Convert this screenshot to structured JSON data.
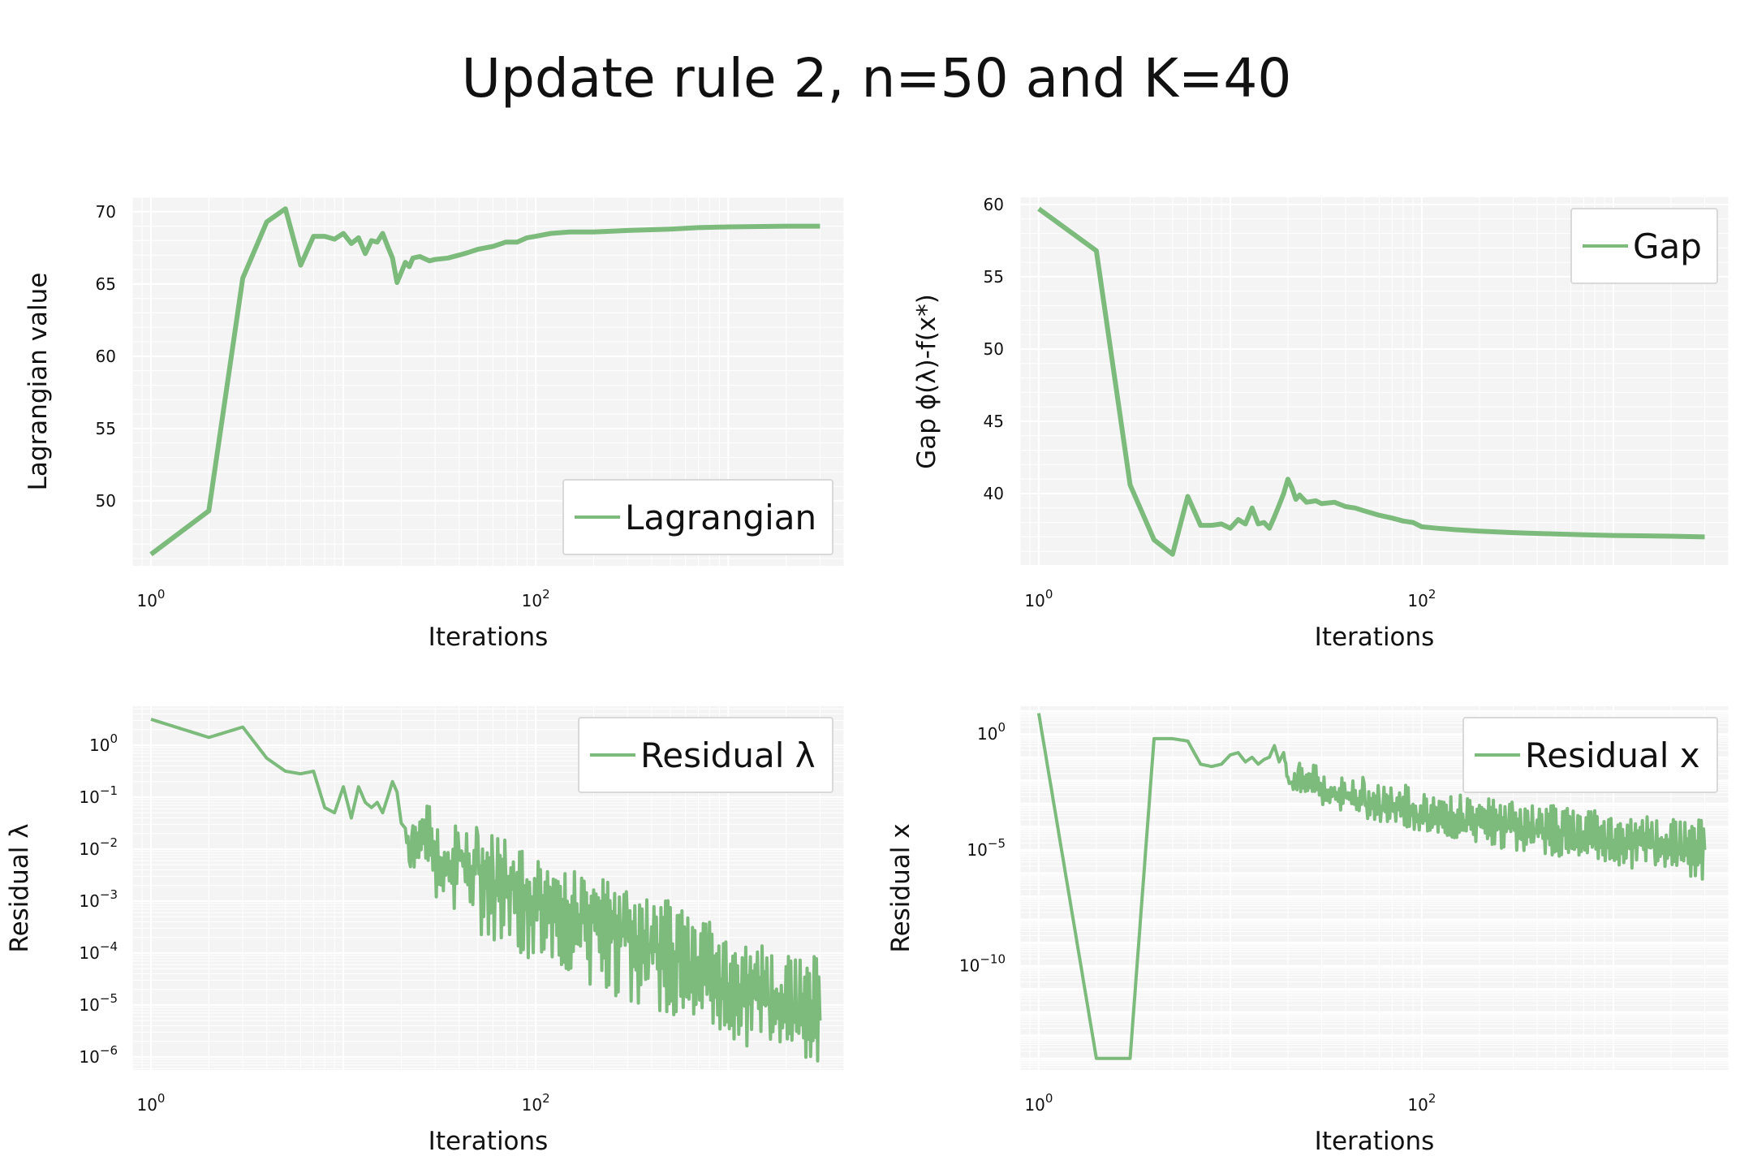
{
  "figure": {
    "title": "Update rule 2, n=50 and K=40"
  },
  "style": {
    "line_color": "#7dbb7d",
    "plot_bg": "#f4f4f4",
    "grid_color": "#ffffff",
    "legend_bg": "#ffffff",
    "legend_border": "#d9d9d9"
  },
  "chart_data": [
    {
      "type": "line",
      "title": "",
      "xlabel": "Iterations",
      "ylabel": "Lagrangian value",
      "xscale": "log",
      "yscale": "linear",
      "xlim": [
        0.8,
        4000
      ],
      "ylim": [
        45.5,
        71
      ],
      "xticks": [
        {
          "v": 1,
          "base": "10",
          "exp": "0"
        },
        {
          "v": 100,
          "base": "10",
          "exp": "2"
        }
      ],
      "yticks": [
        {
          "v": 50,
          "label": "50"
        },
        {
          "v": 55,
          "label": "55"
        },
        {
          "v": 60,
          "label": "60"
        },
        {
          "v": 65,
          "label": "65"
        },
        {
          "v": 70,
          "label": "70"
        }
      ],
      "grid": true,
      "legend": {
        "position": "lower-right",
        "entries": [
          "Lagrangian"
        ]
      },
      "series": [
        {
          "name": "Lagrangian",
          "x": [
            1,
            2,
            3,
            4,
            5,
            6,
            7,
            8,
            9,
            10,
            11,
            12,
            13,
            14,
            15,
            16,
            17,
            18,
            19,
            20,
            21,
            22,
            23,
            25,
            28,
            30,
            35,
            40,
            45,
            50,
            60,
            70,
            80,
            90,
            100,
            120,
            150,
            200,
            300,
            500,
            700,
            1000,
            2000,
            3000
          ],
          "y": [
            46.3,
            49.3,
            65.4,
            69.3,
            70.2,
            66.3,
            68.3,
            68.3,
            68.1,
            68.5,
            67.8,
            68.2,
            67.1,
            68.0,
            67.9,
            68.5,
            67.6,
            66.8,
            65.1,
            65.8,
            66.5,
            66.2,
            66.8,
            66.9,
            66.6,
            66.7,
            66.8,
            67.0,
            67.2,
            67.4,
            67.6,
            67.9,
            67.9,
            68.2,
            68.3,
            68.5,
            68.6,
            68.6,
            68.7,
            68.8,
            68.9,
            68.95,
            69.0,
            69.0
          ]
        }
      ]
    },
    {
      "type": "line",
      "title": "",
      "xlabel": "Iterations",
      "ylabel": "Gap ϕ(λ)-f(x*)",
      "xscale": "log",
      "yscale": "linear",
      "xlim": [
        0.8,
        4000
      ],
      "ylim": [
        35,
        60.5
      ],
      "xticks": [
        {
          "v": 1,
          "base": "10",
          "exp": "0"
        },
        {
          "v": 100,
          "base": "10",
          "exp": "2"
        }
      ],
      "yticks": [
        {
          "v": 40,
          "label": "40"
        },
        {
          "v": 45,
          "label": "45"
        },
        {
          "v": 50,
          "label": "50"
        },
        {
          "v": 55,
          "label": "55"
        },
        {
          "v": 60,
          "label": "60"
        }
      ],
      "grid": true,
      "legend": {
        "position": "upper-right",
        "entries": [
          "Gap"
        ]
      },
      "series": [
        {
          "name": "Gap",
          "x": [
            1,
            2,
            3,
            4,
            5,
            6,
            7,
            8,
            9,
            10,
            11,
            12,
            13,
            14,
            15,
            16,
            17,
            18,
            19,
            20,
            21,
            22,
            23,
            25,
            28,
            30,
            35,
            40,
            45,
            50,
            60,
            70,
            80,
            90,
            100,
            120,
            150,
            200,
            300,
            500,
            700,
            1000,
            2000,
            3000
          ],
          "y": [
            59.7,
            56.8,
            40.6,
            36.8,
            35.8,
            39.8,
            37.8,
            37.8,
            37.9,
            37.6,
            38.2,
            37.9,
            39.0,
            37.9,
            38.0,
            37.6,
            38.4,
            39.2,
            40.0,
            41.0,
            40.4,
            39.6,
            39.9,
            39.4,
            39.5,
            39.3,
            39.4,
            39.1,
            39.0,
            38.8,
            38.5,
            38.3,
            38.1,
            38.0,
            37.7,
            37.6,
            37.5,
            37.4,
            37.3,
            37.2,
            37.15,
            37.1,
            37.05,
            37.0
          ]
        }
      ]
    },
    {
      "type": "line",
      "title": "",
      "xlabel": "Iterations",
      "ylabel": "Residual λ",
      "xscale": "log",
      "yscale": "log",
      "xlim": [
        0.8,
        4000
      ],
      "ylim_log10": [
        -6.25,
        0.75
      ],
      "xticks": [
        {
          "v": 1,
          "base": "10",
          "exp": "0"
        },
        {
          "v": 100,
          "base": "10",
          "exp": "2"
        }
      ],
      "yticks": [
        {
          "e": 0,
          "base": "10",
          "exp": "0"
        },
        {
          "e": -1,
          "base": "10",
          "exp": "−1"
        },
        {
          "e": -2,
          "base": "10",
          "exp": "−2"
        },
        {
          "e": -3,
          "base": "10",
          "exp": "−3"
        },
        {
          "e": -4,
          "base": "10",
          "exp": "−4"
        },
        {
          "e": -5,
          "base": "10",
          "exp": "−5"
        },
        {
          "e": -6,
          "base": "10",
          "exp": "−6"
        }
      ],
      "grid": true,
      "legend": {
        "position": "upper-right",
        "entries": [
          "Residual λ"
        ]
      },
      "series": [
        {
          "name": "Residual λ",
          "x": [
            1,
            2,
            3,
            4,
            5,
            6,
            7,
            8,
            9,
            10,
            11,
            12,
            13,
            14,
            15,
            16,
            17,
            18,
            19,
            20,
            21,
            22,
            23,
            25,
            28,
            30,
            35,
            40,
            45,
            50,
            60,
            70,
            80,
            90,
            100,
            120,
            150,
            200,
            250,
            300,
            400,
            500,
            600,
            700,
            800,
            1000,
            1200,
            1500,
            2000,
            2500,
            3000
          ],
          "y_log10": [
            0.5,
            0.15,
            0.35,
            -0.25,
            -0.5,
            -0.55,
            -0.5,
            -1.2,
            -1.3,
            -0.8,
            -1.4,
            -0.8,
            -1.1,
            -1.2,
            -1.1,
            -1.3,
            -1.0,
            -0.7,
            -0.9,
            -1.5,
            -1.6,
            -2.3,
            -2.0,
            -1.9,
            -1.6,
            -2.2,
            -2.4,
            -2.1,
            -2.5,
            -2.3,
            -2.6,
            -2.7,
            -2.8,
            -3.0,
            -2.9,
            -3.1,
            -3.3,
            -3.4,
            -3.6,
            -3.7,
            -3.9,
            -4.1,
            -4.2,
            -4.3,
            -4.5,
            -4.6,
            -4.8,
            -4.9,
            -5.1,
            -5.2,
            -5.3
          ],
          "upper_envelope_log10": [
            0.5,
            0.15,
            0.35,
            -0.25,
            -0.5,
            -0.55,
            -0.5,
            -1.2,
            -1.3,
            -0.8,
            -1.4,
            -0.8,
            -1.1,
            -1.2,
            -1.1,
            -1.3,
            -1.0,
            -0.7,
            -0.9,
            -1.5,
            -1.6,
            -1.6,
            -1.5,
            -1.3,
            -1.0,
            -1.5,
            -1.6,
            -1.2,
            -1.7,
            -1.4,
            -1.6,
            -1.8,
            -2.0,
            -1.9,
            -2.0,
            -2.3,
            -2.4,
            -2.5,
            -2.6,
            -2.8,
            -2.9,
            -3.0,
            -3.2,
            -3.3,
            -3.4,
            -3.6,
            -3.7,
            -3.8,
            -4.0,
            -4.0,
            -4.1
          ],
          "lower_envelope_log10": [
            0.5,
            0.15,
            0.35,
            -0.25,
            -0.5,
            -0.55,
            -0.5,
            -1.2,
            -1.3,
            -0.8,
            -1.4,
            -0.8,
            -1.1,
            -1.2,
            -1.1,
            -1.3,
            -1.0,
            -0.7,
            -0.9,
            -1.5,
            -1.6,
            -2.5,
            -2.4,
            -2.6,
            -2.8,
            -3.0,
            -3.2,
            -3.3,
            -3.4,
            -3.6,
            -3.8,
            -3.9,
            -4.0,
            -4.1,
            -4.2,
            -4.4,
            -4.5,
            -4.7,
            -4.8,
            -4.9,
            -5.1,
            -5.2,
            -5.4,
            -5.5,
            -5.6,
            -5.7,
            -5.8,
            -5.9,
            -6.0,
            -6.05,
            -6.1
          ]
        }
      ]
    },
    {
      "type": "line",
      "title": "",
      "xlabel": "Iterations",
      "ylabel": "Residual x",
      "xscale": "log",
      "yscale": "log",
      "xlim": [
        0.8,
        4000
      ],
      "ylim_log10": [
        -14.5,
        1.2
      ],
      "xticks": [
        {
          "v": 1,
          "base": "10",
          "exp": "0"
        },
        {
          "v": 100,
          "base": "10",
          "exp": "2"
        }
      ],
      "yticks": [
        {
          "e": 0,
          "base": "10",
          "exp": "0"
        },
        {
          "e": -5,
          "base": "10",
          "exp": "−5"
        },
        {
          "e": -10,
          "base": "10",
          "exp": "−10"
        }
      ],
      "grid": true,
      "legend": {
        "position": "upper-right",
        "entries": [
          "Residual x"
        ]
      },
      "series": [
        {
          "name": "Residual x",
          "x": [
            1,
            2,
            3,
            4,
            5,
            6,
            7,
            8,
            9,
            10,
            11,
            12,
            13,
            14,
            15,
            16,
            17,
            18,
            19,
            20,
            21,
            22,
            23,
            25,
            28,
            30,
            35,
            40,
            45,
            50,
            60,
            70,
            80,
            90,
            100,
            120,
            150,
            200,
            250,
            300,
            400,
            500,
            600,
            700,
            800,
            1000,
            1200,
            1500,
            2000,
            2500,
            3000
          ],
          "y_log10": [
            0.9,
            -14,
            -14,
            -0.2,
            -0.2,
            -0.3,
            -1.3,
            -1.4,
            -1.3,
            -0.9,
            -0.8,
            -1.2,
            -1.0,
            -1.3,
            -1.1,
            -1.0,
            -0.5,
            -1.2,
            -0.8,
            -2.0,
            -2.2,
            -2.4,
            -1.8,
            -2.4,
            -2.0,
            -2.5,
            -2.6,
            -2.7,
            -2.9,
            -3.0,
            -3.1,
            -3.2,
            -3.3,
            -3.4,
            -3.6,
            -3.7,
            -3.8,
            -3.9,
            -4.0,
            -4.1,
            -4.2,
            -4.3,
            -4.4,
            -4.5,
            -4.6,
            -4.6,
            -4.7,
            -4.8,
            -4.9,
            -4.95,
            -5.0
          ],
          "upper_envelope_log10": [
            0.9,
            -14,
            -14,
            -0.2,
            -0.2,
            -0.3,
            -1.3,
            -1.4,
            -1.3,
            -0.9,
            -0.8,
            -1.2,
            -1.0,
            -1.3,
            -1.1,
            -1.0,
            -0.5,
            -1.2,
            -0.8,
            -1.5,
            -1.6,
            -1.3,
            -1.2,
            -1.5,
            -1.1,
            -1.7,
            -1.9,
            -1.5,
            -2.0,
            -1.6,
            -2.1,
            -2.3,
            -2.0,
            -2.4,
            -2.3,
            -2.5,
            -2.6,
            -2.7,
            -2.8,
            -2.9,
            -3.0,
            -3.1,
            -3.2,
            -3.2,
            -3.3,
            -3.4,
            -3.5,
            -3.5,
            -3.6,
            -3.7,
            -3.7
          ],
          "lower_envelope_log10": [
            0.9,
            -14,
            -14,
            -0.2,
            -0.2,
            -0.3,
            -1.3,
            -1.4,
            -1.3,
            -0.9,
            -0.8,
            -1.2,
            -1.0,
            -1.3,
            -1.1,
            -1.0,
            -0.5,
            -1.2,
            -0.8,
            -2.2,
            -2.4,
            -2.6,
            -2.6,
            -2.8,
            -2.9,
            -3.1,
            -3.3,
            -3.4,
            -3.5,
            -3.6,
            -3.8,
            -3.9,
            -4.0,
            -4.1,
            -4.3,
            -4.4,
            -4.6,
            -4.7,
            -4.9,
            -5.0,
            -5.1,
            -5.3,
            -5.4,
            -5.5,
            -5.6,
            -5.7,
            -5.8,
            -5.9,
            -6.1,
            -6.2,
            -6.3
          ]
        }
      ]
    }
  ]
}
